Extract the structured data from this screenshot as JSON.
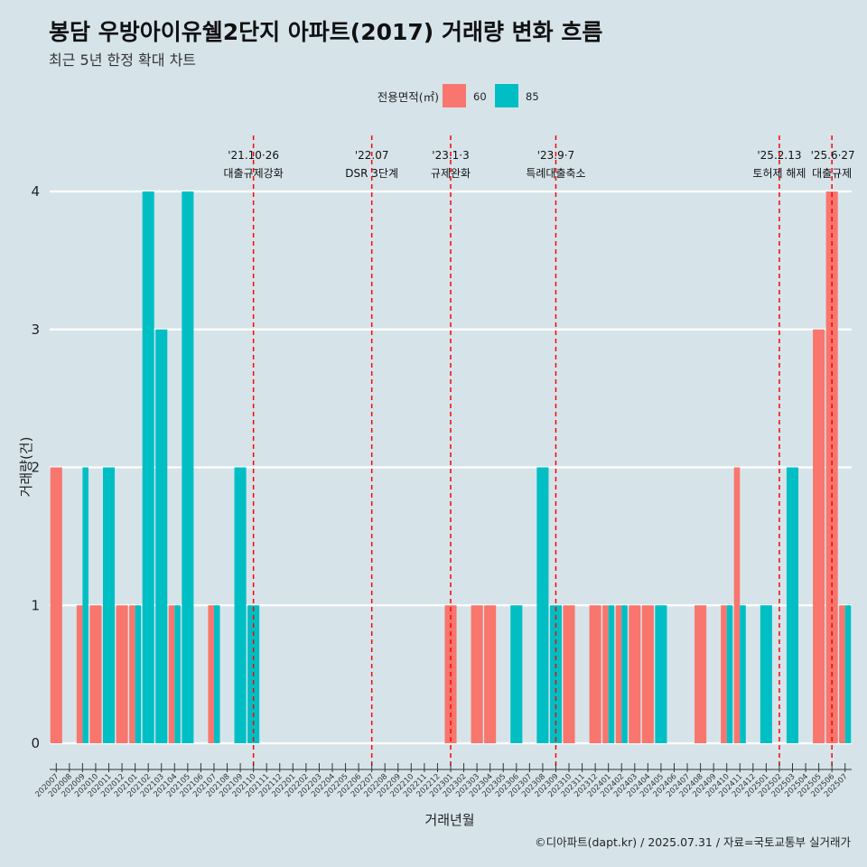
{
  "header": {
    "title": "봉담 우방아이유쉘2단지 아파트(2017) 거래량 변화 흐름",
    "subtitle": "최근 5년 한정 확대 차트"
  },
  "footer": {
    "caption": "©디아파트(dapt.kr) / 2025.07.31 / 자료=국토교통부 실거래가"
  },
  "chart_data": {
    "type": "bar",
    "xlabel": "거래년월",
    "ylabel": "거래량(건)",
    "ylim": [
      0,
      4
    ],
    "yticks": [
      0,
      1,
      2,
      3,
      4
    ],
    "legend": {
      "title": "전용면적(㎡)",
      "position": "top"
    },
    "categories": [
      "202007",
      "202008",
      "202009",
      "202010",
      "202011",
      "202012",
      "202101",
      "202102",
      "202103",
      "202104",
      "202105",
      "202106",
      "202107",
      "202108",
      "202109",
      "202110",
      "202111",
      "202112",
      "202201",
      "202202",
      "202203",
      "202204",
      "202205",
      "202206",
      "202207",
      "202208",
      "202209",
      "202210",
      "202211",
      "202212",
      "202301",
      "202302",
      "202303",
      "202304",
      "202305",
      "202306",
      "202307",
      "202308",
      "202309",
      "202310",
      "202311",
      "202312",
      "202401",
      "202402",
      "202403",
      "202404",
      "202405",
      "202406",
      "202407",
      "202408",
      "202409",
      "202410",
      "202411",
      "202412",
      "202501",
      "202502",
      "202503",
      "202504",
      "202505",
      "202506",
      "202507"
    ],
    "series": [
      {
        "name": "60",
        "color": "#f8766d",
        "values": [
          2,
          0,
          1,
          1,
          0,
          1,
          1,
          0,
          0,
          1,
          0,
          0,
          1,
          0,
          0,
          0,
          0,
          0,
          0,
          0,
          0,
          0,
          0,
          0,
          0,
          0,
          0,
          0,
          0,
          0,
          1,
          0,
          1,
          1,
          0,
          0,
          0,
          0,
          0,
          1,
          0,
          1,
          1,
          1,
          1,
          1,
          0,
          0,
          0,
          1,
          0,
          1,
          2,
          0,
          0,
          0,
          0,
          0,
          3,
          4,
          1
        ]
      },
      {
        "name": "85",
        "color": "#00bfc4",
        "values": [
          0,
          0,
          2,
          0,
          2,
          0,
          1,
          4,
          3,
          1,
          4,
          0,
          1,
          0,
          2,
          1,
          0,
          0,
          0,
          0,
          0,
          0,
          0,
          0,
          0,
          0,
          0,
          0,
          0,
          0,
          0,
          0,
          0,
          0,
          0,
          1,
          0,
          2,
          1,
          0,
          0,
          0,
          1,
          1,
          0,
          0,
          1,
          0,
          0,
          0,
          0,
          1,
          1,
          0,
          1,
          0,
          2,
          0,
          0,
          0,
          1
        ]
      }
    ],
    "annotations": [
      {
        "category": "202110",
        "date": "'21.10·26",
        "label": "대출규제강화",
        "color": "#ff0000"
      },
      {
        "category": "202207",
        "date": "'22.07",
        "label": "DSR 3단계",
        "color": "#ff0000"
      },
      {
        "category": "202301",
        "date": "'23.1·3",
        "label": "규제완화",
        "color": "#ff0000"
      },
      {
        "category": "202309",
        "date": "'23.9·7",
        "label": "특례대출축소",
        "color": "#ff0000"
      },
      {
        "category": "202502",
        "date": "'25.2.13",
        "label": "토허제 해제",
        "color": "#ff0000"
      },
      {
        "category": "202506",
        "date": "'25.6·27",
        "label": "대출규제",
        "color": "#ff0000"
      }
    ]
  }
}
